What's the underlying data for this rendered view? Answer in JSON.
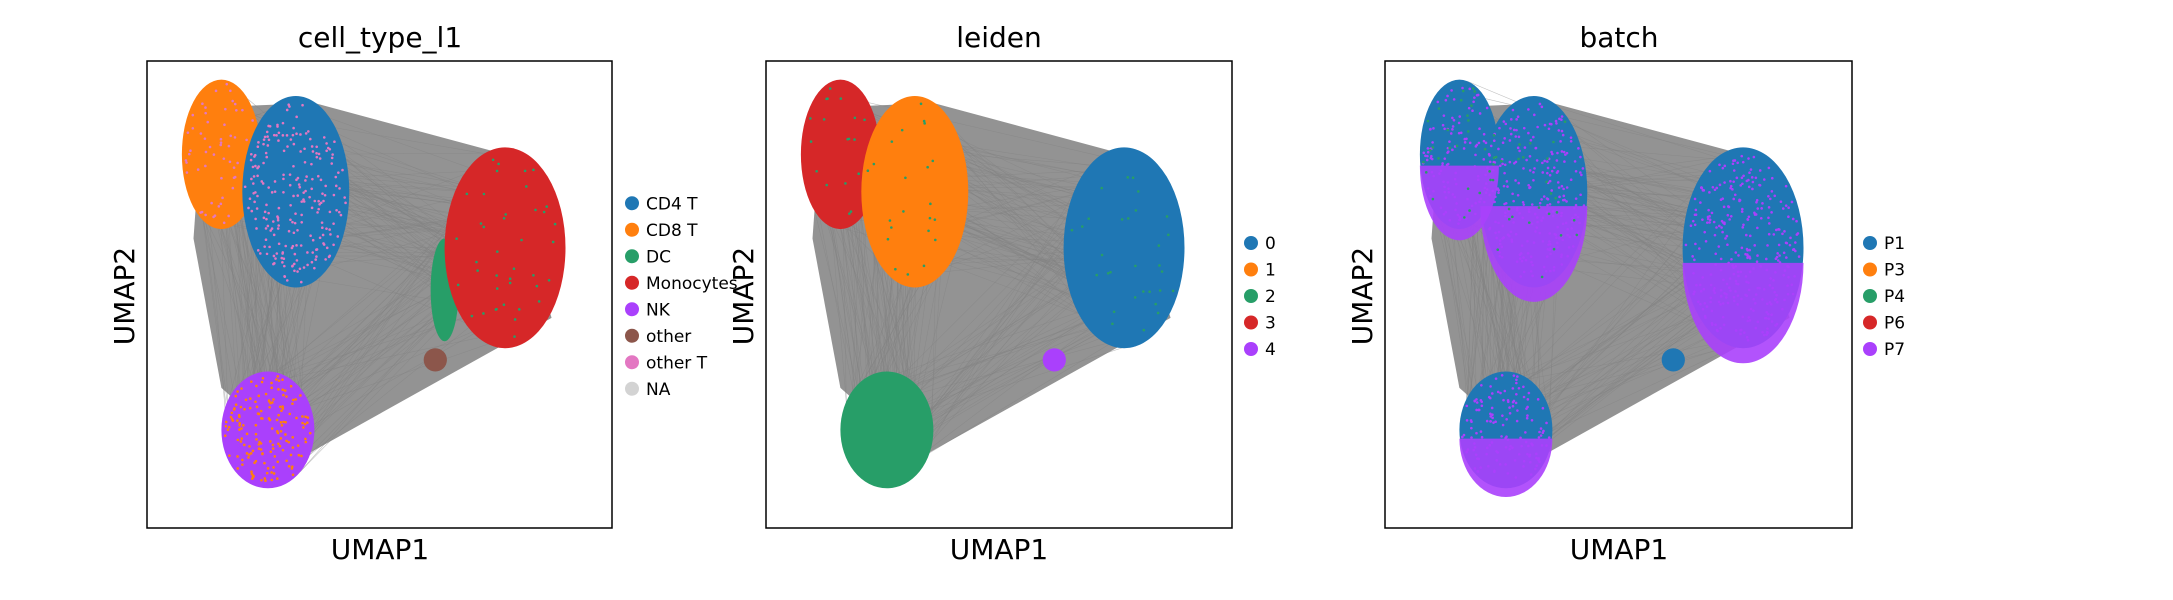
{
  "figure": {
    "xlabel": "UMAP1",
    "ylabel": "UMAP2",
    "background": "#ffffff",
    "edge_color": "#808080"
  },
  "chart_data": [
    {
      "type": "scatter",
      "title": "cell_type_l1",
      "xlabel": "UMAP1",
      "ylabel": "UMAP2",
      "ticks": "none",
      "grid": false,
      "legend_placement": "right",
      "legend": [
        {
          "name": "CD4 T",
          "color": "#1f77b4"
        },
        {
          "name": "CD8 T",
          "color": "#ff7f0e"
        },
        {
          "name": "DC",
          "color": "#279e68"
        },
        {
          "name": "Monocytes",
          "color": "#d62728"
        },
        {
          "name": "NK",
          "color": "#aa40fc"
        },
        {
          "name": "other",
          "color": "#8c564b"
        },
        {
          "name": "other T",
          "color": "#e377c2"
        },
        {
          "name": "NA",
          "color": "#d3d3d3"
        }
      ]
    },
    {
      "type": "scatter",
      "title": "leiden",
      "xlabel": "UMAP1",
      "ylabel": "UMAP2",
      "ticks": "none",
      "grid": false,
      "legend_placement": "right",
      "legend": [
        {
          "name": "0",
          "color": "#1f77b4"
        },
        {
          "name": "1",
          "color": "#ff7f0e"
        },
        {
          "name": "2",
          "color": "#279e68"
        },
        {
          "name": "3",
          "color": "#d62728"
        },
        {
          "name": "4",
          "color": "#aa40fc"
        }
      ]
    },
    {
      "type": "scatter",
      "title": "batch",
      "xlabel": "UMAP1",
      "ylabel": "UMAP2",
      "ticks": "none",
      "grid": false,
      "legend_placement": "right",
      "legend": [
        {
          "name": "P1",
          "color": "#1f77b4"
        },
        {
          "name": "P3",
          "color": "#ff7f0e"
        },
        {
          "name": "P4",
          "color": "#279e68"
        },
        {
          "name": "P6",
          "color": "#d62728"
        },
        {
          "name": "P7",
          "color": "#aa40fc"
        }
      ]
    }
  ]
}
